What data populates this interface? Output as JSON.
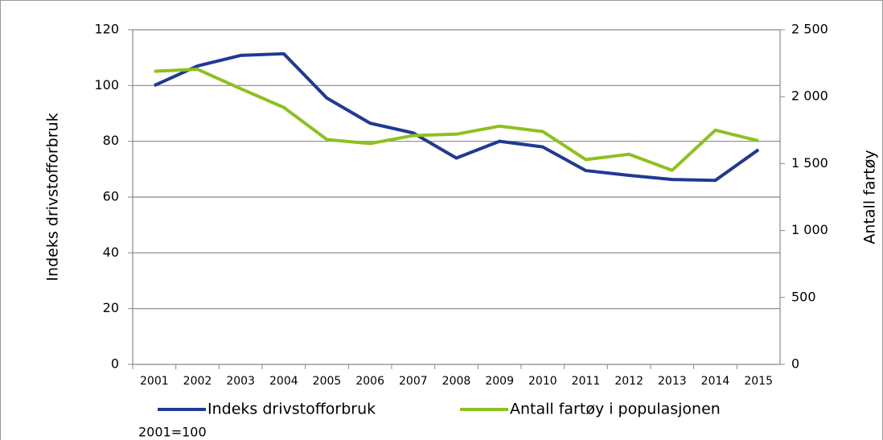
{
  "chart_data": {
    "type": "line",
    "categories": [
      "2001",
      "2002",
      "2003",
      "2004",
      "2005",
      "2006",
      "2007",
      "2008",
      "2009",
      "2010",
      "2011",
      "2012",
      "2013",
      "2014",
      "2015"
    ],
    "series": [
      {
        "name": "Indeks drivstofforbruk",
        "color": "#1f3a93",
        "values": [
          100,
          107,
          110.8,
          111.4,
          95.5,
          86.5,
          83,
          74,
          80,
          78,
          69.5,
          67.8,
          66.3,
          66,
          77
        ]
      },
      {
        "name": "Antall fartøy i populasjonen",
        "color": "#8cc11f",
        "axis": "y2",
        "values": [
          2190,
          2205,
          2060,
          1920,
          1680,
          1650,
          1710,
          1720,
          1780,
          1740,
          1530,
          1570,
          1450,
          1750,
          1670
        ]
      }
    ],
    "ylabel": "Indeks drivstofforbruk",
    "y2label": "Antall fartøy",
    "note": "2001=100",
    "ylim": [
      0,
      120
    ],
    "yticks": [
      0,
      20,
      40,
      60,
      80,
      100,
      120
    ],
    "y2lim": [
      0,
      2500
    ],
    "y2ticks": [
      0,
      500,
      {
        "value": 1000,
        "label": "1 000"
      },
      {
        "value": 1500,
        "label": "1 500"
      },
      {
        "value": 2000,
        "label": "2 000"
      },
      {
        "value": 2500,
        "label": "2 500"
      }
    ],
    "grid": true
  }
}
